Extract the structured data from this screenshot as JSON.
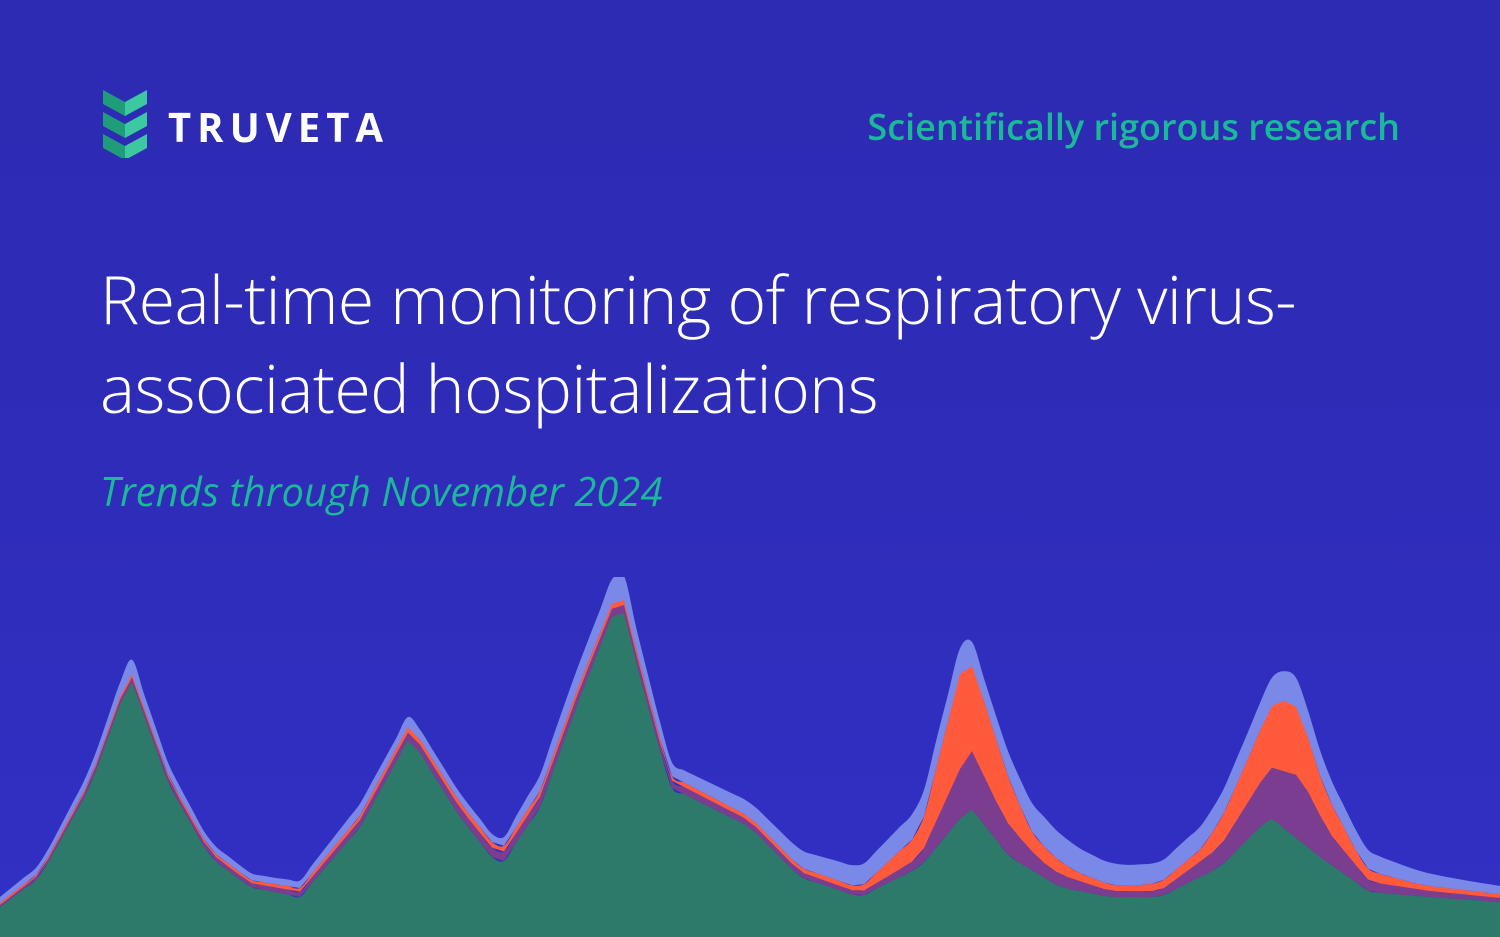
{
  "brand": {
    "name": "TRUVETA",
    "text_color": "#ffffff",
    "logo_mark_color_light": "#3cc9a1",
    "logo_mark_color_dark": "#1f9c7a"
  },
  "tagline": {
    "text": "Scientifically rigorous research",
    "color": "#1cb89a",
    "fontsize": 36
  },
  "headline": {
    "text": "Real-time monitoring of respiratory virus-associated hospitalizations",
    "color": "#ffffff",
    "fontsize": 66,
    "fontweight": 300
  },
  "subtitle": {
    "text": "Trends through November 2024",
    "color": "#1cb89a",
    "fontsize": 40,
    "italic": true
  },
  "background": {
    "gradient_top": "#2d2bb3",
    "gradient_bottom": "#3230c5"
  },
  "chart": {
    "type": "area-stacked",
    "viewbox_width": 1500,
    "viewbox_height": 360,
    "x_range": [
      0,
      1500
    ],
    "series": [
      {
        "name": "series-green",
        "color": "#2d7a6a",
        "points": [
          [
            0,
            30
          ],
          [
            40,
            60
          ],
          [
            90,
            150
          ],
          [
            130,
            260
          ],
          [
            170,
            150
          ],
          [
            210,
            80
          ],
          [
            250,
            50
          ],
          [
            300,
            40
          ],
          [
            360,
            110
          ],
          [
            410,
            200
          ],
          [
            460,
            120
          ],
          [
            500,
            70
          ],
          [
            540,
            130
          ],
          [
            580,
            240
          ],
          [
            620,
            340
          ],
          [
            640,
            260
          ],
          [
            670,
            150
          ],
          [
            710,
            130
          ],
          [
            750,
            110
          ],
          [
            800,
            60
          ],
          [
            860,
            40
          ],
          [
            920,
            70
          ],
          [
            970,
            130
          ],
          [
            1010,
            80
          ],
          [
            1060,
            50
          ],
          [
            1110,
            40
          ],
          [
            1160,
            40
          ],
          [
            1220,
            70
          ],
          [
            1270,
            120
          ],
          [
            1320,
            80
          ],
          [
            1370,
            45
          ],
          [
            1430,
            40
          ],
          [
            1500,
            35
          ]
        ]
      },
      {
        "name": "series-purple",
        "color": "#7a3d8f",
        "points": [
          [
            0,
            2
          ],
          [
            130,
            5
          ],
          [
            250,
            4
          ],
          [
            400,
            8
          ],
          [
            540,
            10
          ],
          [
            620,
            8
          ],
          [
            750,
            6
          ],
          [
            860,
            4
          ],
          [
            920,
            10
          ],
          [
            970,
            60
          ],
          [
            1000,
            35
          ],
          [
            1040,
            15
          ],
          [
            1110,
            6
          ],
          [
            1160,
            6
          ],
          [
            1220,
            20
          ],
          [
            1270,
            50
          ],
          [
            1300,
            65
          ],
          [
            1330,
            30
          ],
          [
            1370,
            10
          ],
          [
            1430,
            6
          ],
          [
            1500,
            4
          ]
        ]
      },
      {
        "name": "series-orange",
        "color": "#ff5a3c",
        "points": [
          [
            0,
            2
          ],
          [
            130,
            3
          ],
          [
            250,
            3
          ],
          [
            400,
            5
          ],
          [
            540,
            6
          ],
          [
            620,
            5
          ],
          [
            750,
            4
          ],
          [
            860,
            5
          ],
          [
            920,
            25
          ],
          [
            960,
            95
          ],
          [
            990,
            70
          ],
          [
            1030,
            20
          ],
          [
            1080,
            8
          ],
          [
            1130,
            5
          ],
          [
            1200,
            12
          ],
          [
            1250,
            45
          ],
          [
            1290,
            75
          ],
          [
            1320,
            40
          ],
          [
            1360,
            12
          ],
          [
            1420,
            5
          ],
          [
            1500,
            4
          ]
        ]
      },
      {
        "name": "series-blue",
        "color": "#7a88e8",
        "points": [
          [
            0,
            6
          ],
          [
            60,
            8
          ],
          [
            130,
            15
          ],
          [
            200,
            8
          ],
          [
            280,
            6
          ],
          [
            360,
            12
          ],
          [
            420,
            10
          ],
          [
            500,
            8
          ],
          [
            560,
            20
          ],
          [
            620,
            25
          ],
          [
            680,
            12
          ],
          [
            750,
            15
          ],
          [
            820,
            18
          ],
          [
            880,
            22
          ],
          [
            940,
            28
          ],
          [
            990,
            22
          ],
          [
            1040,
            30
          ],
          [
            1100,
            22
          ],
          [
            1160,
            20
          ],
          [
            1230,
            25
          ],
          [
            1290,
            30
          ],
          [
            1340,
            22
          ],
          [
            1400,
            15
          ],
          [
            1460,
            10
          ],
          [
            1500,
            8
          ]
        ]
      }
    ]
  }
}
